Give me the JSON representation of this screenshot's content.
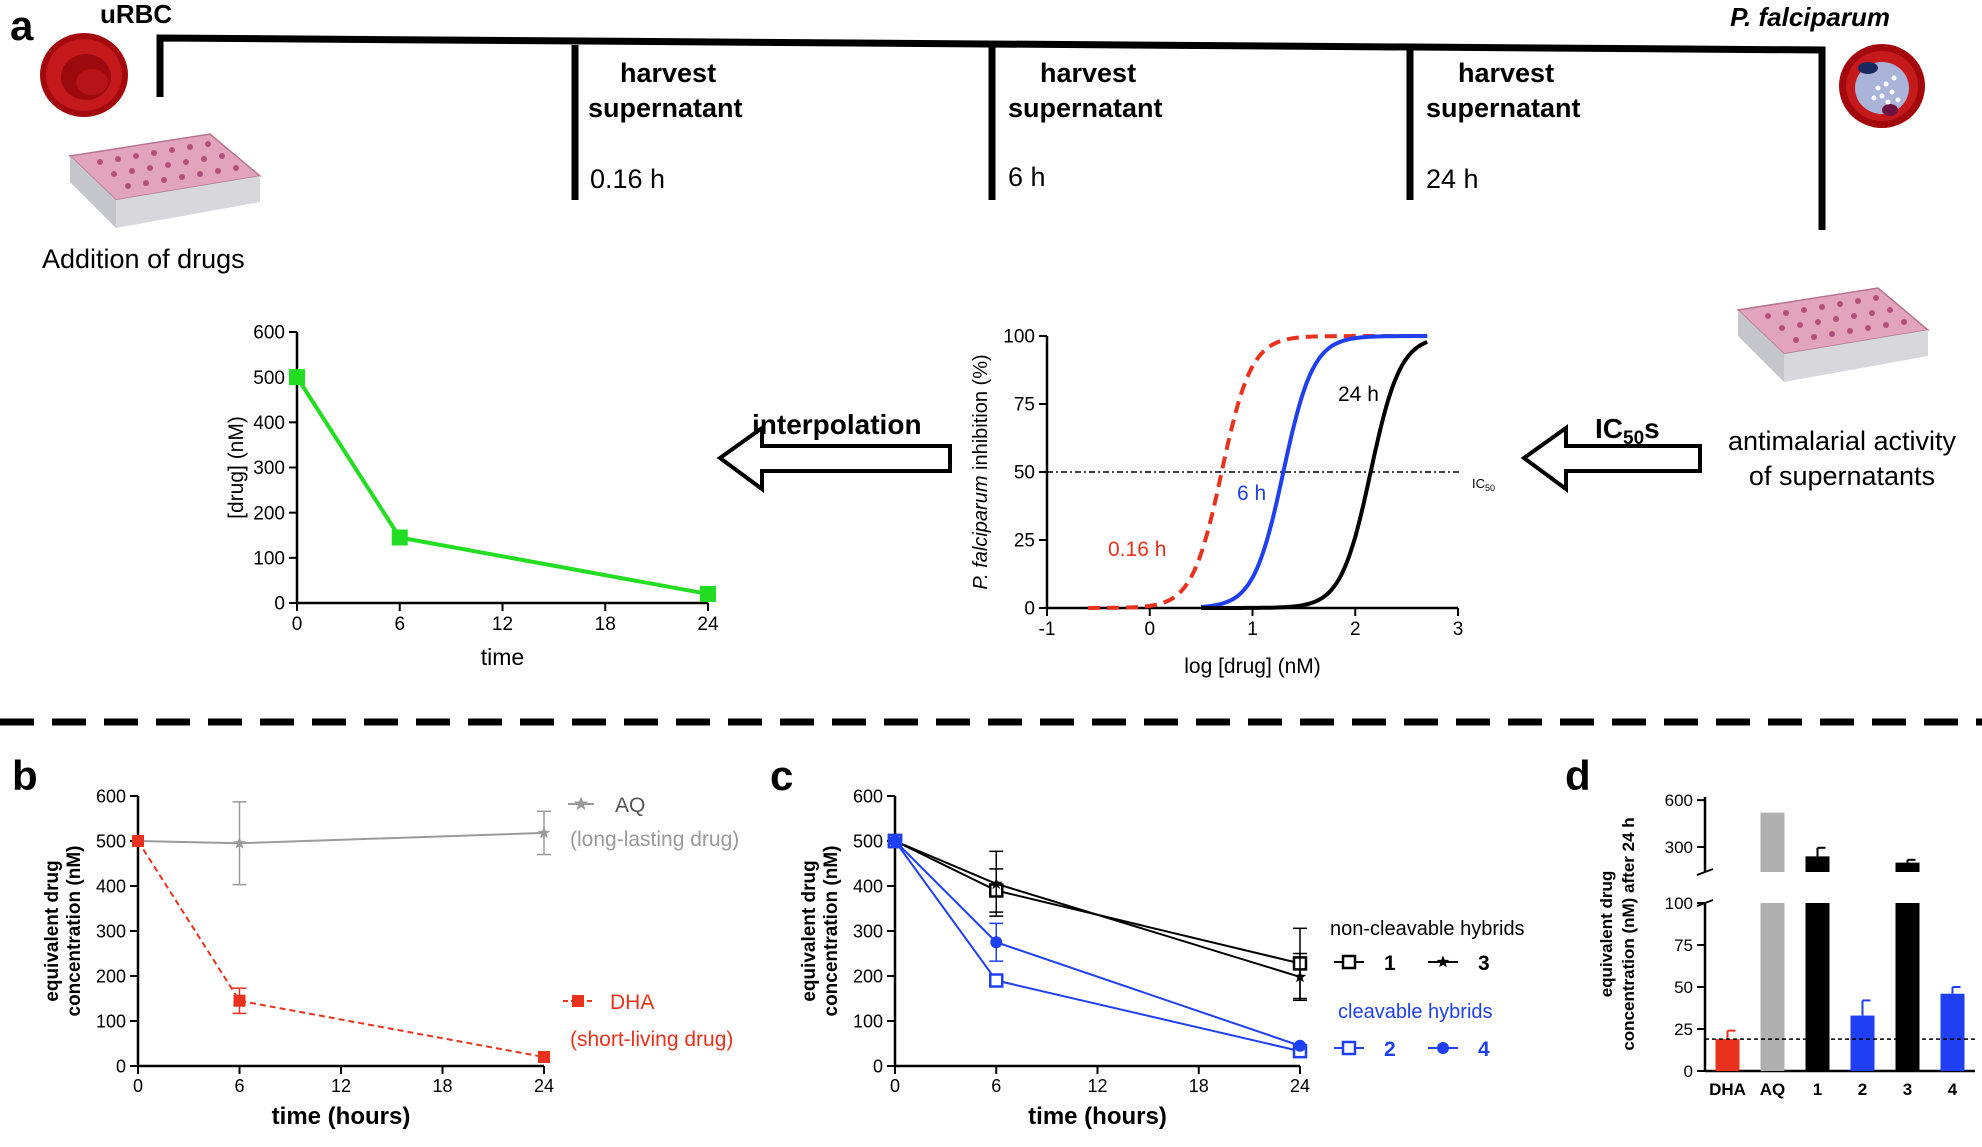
{
  "panel_a": {
    "letter": "a",
    "urbc_label": "uRBC",
    "pf_label": "P. falciparum",
    "addition_label": "Addition of drugs",
    "harvest": [
      {
        "line1": "harvest",
        "line2": "supernatant",
        "time": "0.16 h"
      },
      {
        "line1": "harvest",
        "line2": "supernatant",
        "time": "6 h"
      },
      {
        "line1": "harvest",
        "line2": "supernatant",
        "time": "24 h"
      }
    ],
    "interpolation_label": "interpolation",
    "ic50s_main": "IC",
    "ic50s_sub": "50",
    "ic50s_tail": "s",
    "antimalarial_line1": "antimalarial activity",
    "antimalarial_line2": "of supernatants",
    "colors": {
      "cell_red": "#b01417",
      "plate_pink": "#d98aa8",
      "green": "#22dd22",
      "red": "#e8321e",
      "blue": "#1f3ff2",
      "gray": "#9a9a9a"
    }
  },
  "chart_data": [
    {
      "id": "a-time-course",
      "type": "line",
      "x": [
        0,
        6,
        24
      ],
      "series": [
        {
          "values": [
            500,
            145,
            20
          ],
          "color": "#22dd22",
          "marker": "square"
        }
      ],
      "xticks": [
        "0",
        "6",
        "12",
        "18",
        "24"
      ],
      "yticks": [
        "0",
        "100",
        "200",
        "300",
        "400",
        "500",
        "600"
      ],
      "xlabel": "time",
      "ylabel": "[drug] (nM)",
      "xlim": [
        0,
        24
      ],
      "ylim": [
        0,
        600
      ]
    },
    {
      "id": "a-dose-response",
      "type": "line",
      "xticks": [
        "-1",
        "0",
        "1",
        "2",
        "3"
      ],
      "yticks": [
        "0",
        "25",
        "50",
        "75",
        "100"
      ],
      "xlabel": "log [drug] (nM)",
      "ylabel_italic": "P. falciparum",
      "ylabel_rest": " inhibition (%)",
      "xlim": [
        -1,
        3
      ],
      "ylim": [
        0,
        100
      ],
      "reference_line": {
        "y": 50,
        "label_main": "IC",
        "label_sub": "50"
      },
      "series": [
        {
          "name": "0.16 h",
          "log_ic50": 0.7,
          "hill": 3.0,
          "x_range": [
            -0.6,
            2.7
          ],
          "color": "#e8321e",
          "dashed": true
        },
        {
          "name": "6 h",
          "log_ic50": 1.3,
          "hill": 3.0,
          "x_range": [
            0.5,
            2.7
          ],
          "color": "#1f3ff2",
          "dashed": false
        },
        {
          "name": "24 h",
          "log_ic50": 2.15,
          "hill": 3.0,
          "x_range": [
            0.5,
            2.7
          ],
          "color": "#000000",
          "dashed": false
        }
      ]
    },
    {
      "id": "b",
      "type": "line",
      "letter": "b",
      "x": [
        0,
        6,
        24
      ],
      "xticks": [
        "0",
        "6",
        "12",
        "18",
        "24"
      ],
      "yticks": [
        "0",
        "100",
        "200",
        "300",
        "400",
        "500",
        "600"
      ],
      "xlabel": "time (hours)",
      "ylabel_line1": "equivalent drug",
      "ylabel_line2": "concentration (nM)",
      "xlim": [
        0,
        24
      ],
      "ylim": [
        0,
        600
      ],
      "series": [
        {
          "name": "AQ",
          "note": "(long-lasting drug)",
          "values": [
            500,
            495,
            518
          ],
          "errors": [
            0,
            92,
            48
          ],
          "color": "#9a9a9a",
          "marker": "star",
          "dashed": false
        },
        {
          "name": "DHA",
          "note": "(short-living drug)",
          "values": [
            500,
            145,
            20
          ],
          "errors": [
            0,
            28,
            0
          ],
          "color": "#e8321e",
          "marker": "square",
          "dashed": true
        }
      ]
    },
    {
      "id": "c",
      "type": "line",
      "letter": "c",
      "x": [
        0,
        6,
        24
      ],
      "xticks": [
        "0",
        "6",
        "12",
        "18",
        "24"
      ],
      "yticks": [
        "0",
        "100",
        "200",
        "300",
        "400",
        "500",
        "600"
      ],
      "xlabel": "time (hours)",
      "ylabel_line1": "equivalent drug",
      "ylabel_line2": "concentration (nM)",
      "xlim": [
        0,
        24
      ],
      "ylim": [
        0,
        600
      ],
      "legend_group1": "non-cleavable hybrids",
      "legend_group2": "cleavable hybrids",
      "series": [
        {
          "name": "1",
          "values": [
            500,
            390,
            228
          ],
          "errors": [
            0,
            48,
            78
          ],
          "color": "#000000",
          "marker": "square-open"
        },
        {
          "name": "3",
          "values": [
            500,
            405,
            198
          ],
          "errors": [
            0,
            72,
            52
          ],
          "color": "#000000",
          "marker": "star"
        },
        {
          "name": "2",
          "values": [
            500,
            190,
            33
          ],
          "errors": [
            0,
            0,
            0
          ],
          "color": "#1f3ff2",
          "marker": "square-open"
        },
        {
          "name": "4",
          "values": [
            500,
            275,
            45
          ],
          "errors": [
            0,
            42,
            0
          ],
          "color": "#1f3ff2",
          "marker": "circle"
        }
      ]
    },
    {
      "id": "d",
      "type": "bar",
      "letter": "d",
      "categories": [
        "DHA",
        "AQ",
        "1",
        "2",
        "3",
        "4"
      ],
      "values": [
        19,
        520,
        240,
        33,
        200,
        46
      ],
      "errors": [
        5,
        0,
        55,
        9,
        18,
        4
      ],
      "colors": [
        "#e8321e",
        "#b0b0b0",
        "#000000",
        "#1f3ff2",
        "#000000",
        "#1f3ff2"
      ],
      "ylabel_line1": "equivalent drug",
      "ylabel_line2": "concentration (nM) after 24 h",
      "yticks_lower": [
        "0",
        "25",
        "50",
        "75",
        "100"
      ],
      "yticks_upper": [
        "300",
        "600"
      ],
      "ylim_lower": [
        0,
        100
      ],
      "ylim_upper": [
        140,
        620
      ],
      "reference_line_y": 19,
      "broken_axis": true
    }
  ]
}
